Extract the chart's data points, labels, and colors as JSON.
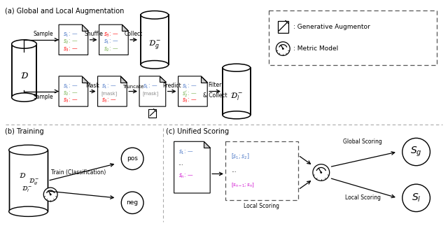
{
  "title_a": "(a) Global and Local Augmentation",
  "title_b": "(b) Training",
  "title_c": "(c) Unified Scoring",
  "legend_gen": ": Generative Augmentor",
  "legend_metric": ": Metric Model",
  "bg_color": "#ffffff",
  "blue": "#4472C4",
  "green": "#70AD47",
  "red": "#FF0000",
  "magenta": "#CC00CC",
  "black": "#000000",
  "gray_fold": "#cccccc",
  "dashed_color": "#666666",
  "mask_color": "#888888"
}
